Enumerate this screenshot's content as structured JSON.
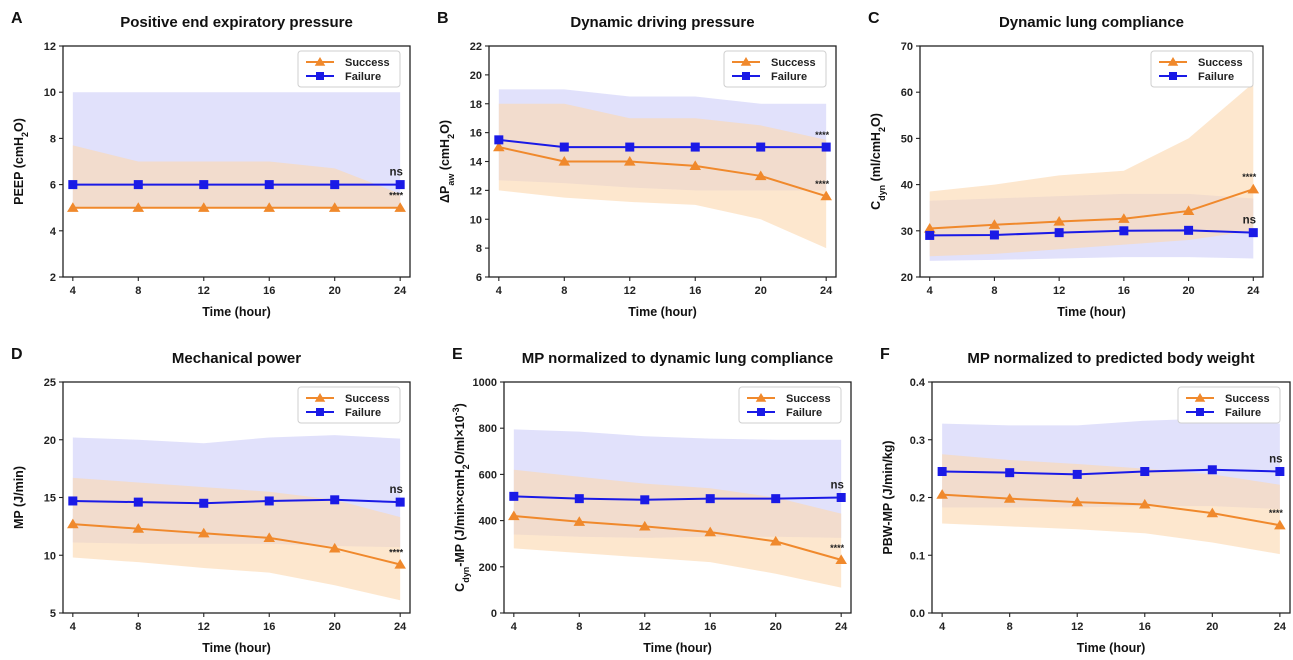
{
  "figure": {
    "legend": {
      "success": "Success",
      "failure": "Failure"
    },
    "colors": {
      "success": "#f0892c",
      "failure": "#1a1ae6",
      "success_band": "#fbd9b0",
      "failure_band": "#c9c9f7"
    }
  },
  "chart_data": [
    {
      "panel": "A",
      "type": "line",
      "title": "Positive end expiratory pressure",
      "xlabel": "Time (hour)",
      "ylabel": "PEEP (cmH2O)",
      "ylabel_parts": [
        [
          "PEEP (cmH",
          ""
        ],
        [
          "2",
          "sub"
        ],
        [
          "O)",
          ""
        ]
      ],
      "x": [
        4,
        8,
        12,
        16,
        20,
        24
      ],
      "xlim": [
        3.4,
        24.6
      ],
      "ylim": [
        2,
        12
      ],
      "yticks": [
        2,
        4,
        6,
        8,
        10,
        12
      ],
      "legend_position": "top-right",
      "series": [
        {
          "name": "Success",
          "marker": "triangle",
          "values": [
            5,
            5,
            5,
            5,
            5,
            5
          ],
          "band_upper": [
            7.7,
            7.0,
            7.0,
            7.0,
            6.7,
            5.6
          ],
          "band_lower": [
            5,
            5,
            5,
            5,
            5,
            5
          ],
          "significance": "****"
        },
        {
          "name": "Failure",
          "marker": "square",
          "values": [
            6,
            6,
            6,
            6,
            6,
            6
          ],
          "band_upper": [
            10,
            10,
            10,
            10,
            10,
            10
          ],
          "band_lower": [
            5,
            5,
            5,
            5,
            5,
            5
          ],
          "significance": "ns"
        }
      ]
    },
    {
      "panel": "B",
      "type": "line",
      "title": "Dynamic driving pressure",
      "xlabel": "Time (hour)",
      "ylabel": "ΔPaw (cmH2O)",
      "ylabel_parts": [
        [
          "ΔP",
          ""
        ],
        [
          "aw",
          "sub"
        ],
        [
          " (cmH",
          ""
        ],
        [
          "2",
          "sub"
        ],
        [
          "O)",
          ""
        ]
      ],
      "x": [
        4,
        8,
        12,
        16,
        20,
        24
      ],
      "xlim": [
        3.4,
        24.6
      ],
      "ylim": [
        6,
        22
      ],
      "yticks": [
        6,
        8,
        10,
        12,
        14,
        16,
        18,
        20,
        22
      ],
      "legend_position": "top-right",
      "series": [
        {
          "name": "Success",
          "marker": "triangle",
          "values": [
            15,
            14,
            14,
            13.7,
            13,
            11.6
          ],
          "band_upper": [
            18,
            18,
            17,
            17,
            16.5,
            15.5
          ],
          "band_lower": [
            12,
            11.5,
            11.2,
            11,
            10,
            8
          ],
          "significance": "****"
        },
        {
          "name": "Failure",
          "marker": "square",
          "values": [
            15.5,
            15,
            15,
            15,
            15,
            15
          ],
          "band_upper": [
            19,
            19,
            18.5,
            18.5,
            18,
            18
          ],
          "band_lower": [
            12.7,
            12.5,
            12.2,
            12,
            12,
            12
          ],
          "significance": "****"
        }
      ]
    },
    {
      "panel": "C",
      "type": "line",
      "title": "Dynamic lung compliance",
      "xlabel": "Time (hour)",
      "ylabel": "Cdyn (ml/cmH2O)",
      "ylabel_parts": [
        [
          "C",
          ""
        ],
        [
          "dyn",
          "sub"
        ],
        [
          " (ml/cmH",
          ""
        ],
        [
          "2",
          "sub"
        ],
        [
          "O)",
          ""
        ]
      ],
      "x": [
        4,
        8,
        12,
        16,
        20,
        24
      ],
      "xlim": [
        3.4,
        24.6
      ],
      "ylim": [
        20,
        70
      ],
      "yticks": [
        20,
        30,
        40,
        50,
        60,
        70
      ],
      "legend_position": "top-right",
      "series": [
        {
          "name": "Success",
          "marker": "triangle",
          "values": [
            30.5,
            31.3,
            32,
            32.6,
            34.3,
            39
          ],
          "band_upper": [
            38.5,
            40,
            42,
            43,
            50,
            62
          ],
          "band_lower": [
            24.5,
            25,
            26,
            27,
            28,
            30
          ],
          "significance": "****"
        },
        {
          "name": "Failure",
          "marker": "square",
          "values": [
            29,
            29.1,
            29.6,
            30,
            30.1,
            29.6
          ],
          "band_upper": [
            36.5,
            37,
            37.5,
            38,
            38,
            37
          ],
          "band_lower": [
            23.5,
            23.7,
            24,
            24.3,
            24.3,
            24
          ],
          "significance": "ns"
        }
      ]
    },
    {
      "panel": "D",
      "type": "line",
      "title": "Mechanical power",
      "xlabel": "Time (hour)",
      "ylabel": "MP (J/min)",
      "ylabel_parts": [
        [
          "MP (J/min)",
          ""
        ]
      ],
      "x": [
        4,
        8,
        12,
        16,
        20,
        24
      ],
      "xlim": [
        3.4,
        24.6
      ],
      "ylim": [
        5,
        25
      ],
      "yticks": [
        5,
        10,
        15,
        20,
        25
      ],
      "legend_position": "top-right",
      "series": [
        {
          "name": "Success",
          "marker": "triangle",
          "values": [
            12.7,
            12.3,
            11.9,
            11.5,
            10.6,
            9.2
          ],
          "band_upper": [
            16.7,
            16.3,
            15.9,
            15.5,
            14.8,
            13.3
          ],
          "band_lower": [
            9.8,
            9.4,
            8.9,
            8.5,
            7.4,
            6.1
          ],
          "significance": "****"
        },
        {
          "name": "Failure",
          "marker": "square",
          "values": [
            14.7,
            14.6,
            14.5,
            14.7,
            14.8,
            14.6
          ],
          "band_upper": [
            20.2,
            20.0,
            19.7,
            20.2,
            20.4,
            20.1
          ],
          "band_lower": [
            11.1,
            11.0,
            11.0,
            11.0,
            10.8,
            10.7
          ],
          "significance": "ns"
        }
      ]
    },
    {
      "panel": "E",
      "type": "line",
      "title": "MP normalized to dynamic lung compliance",
      "xlabel": "Time (hour)",
      "ylabel": "Cdyn-MP (J/min×cmH2O/ml×10-3)",
      "ylabel_parts": [
        [
          "C",
          ""
        ],
        [
          "dyn",
          "sub"
        ],
        [
          "-MP (J/min×cmH",
          ""
        ],
        [
          "2",
          "sub"
        ],
        [
          "O/ml×10",
          ""
        ],
        [
          "-3",
          "sup"
        ],
        [
          ")",
          ""
        ]
      ],
      "x": [
        4,
        8,
        12,
        16,
        20,
        24
      ],
      "xlim": [
        3.4,
        24.6
      ],
      "ylim": [
        0,
        1000
      ],
      "yticks": [
        0,
        200,
        400,
        600,
        800,
        1000
      ],
      "legend_position": "top-right",
      "series": [
        {
          "name": "Success",
          "marker": "triangle",
          "values": [
            420,
            395,
            375,
            350,
            310,
            230
          ],
          "band_upper": [
            620,
            590,
            560,
            540,
            500,
            430
          ],
          "band_lower": [
            280,
            260,
            240,
            220,
            170,
            110
          ],
          "significance": "****"
        },
        {
          "name": "Failure",
          "marker": "square",
          "values": [
            505,
            495,
            490,
            495,
            495,
            500
          ],
          "band_upper": [
            795,
            785,
            765,
            755,
            750,
            750
          ],
          "band_lower": [
            340,
            330,
            325,
            330,
            330,
            325
          ],
          "significance": "ns"
        }
      ]
    },
    {
      "panel": "F",
      "type": "line",
      "title": "MP normalized to predicted body weight",
      "xlabel": "Time (hour)",
      "ylabel": "PBW-MP (J/min/kg)",
      "ylabel_parts": [
        [
          "PBW-MP (J/min/kg)",
          ""
        ]
      ],
      "x": [
        4,
        8,
        12,
        16,
        20,
        24
      ],
      "xlim": [
        3.4,
        24.6
      ],
      "ylim": [
        0.0,
        0.4
      ],
      "yticks": [
        0.0,
        0.1,
        0.2,
        0.3,
        0.4
      ],
      "ytick_decimals": 1,
      "legend_position": "top-right",
      "series": [
        {
          "name": "Success",
          "marker": "triangle",
          "values": [
            0.205,
            0.198,
            0.192,
            0.188,
            0.173,
            0.152
          ],
          "band_upper": [
            0.275,
            0.265,
            0.258,
            0.25,
            0.24,
            0.222
          ],
          "band_lower": [
            0.155,
            0.15,
            0.145,
            0.138,
            0.122,
            0.102
          ],
          "significance": "****"
        },
        {
          "name": "Failure",
          "marker": "square",
          "values": [
            0.245,
            0.243,
            0.24,
            0.245,
            0.248,
            0.245
          ],
          "band_upper": [
            0.328,
            0.325,
            0.325,
            0.333,
            0.337,
            0.328
          ],
          "band_lower": [
            0.183,
            0.183,
            0.183,
            0.185,
            0.185,
            0.18
          ],
          "significance": "ns"
        }
      ]
    }
  ]
}
